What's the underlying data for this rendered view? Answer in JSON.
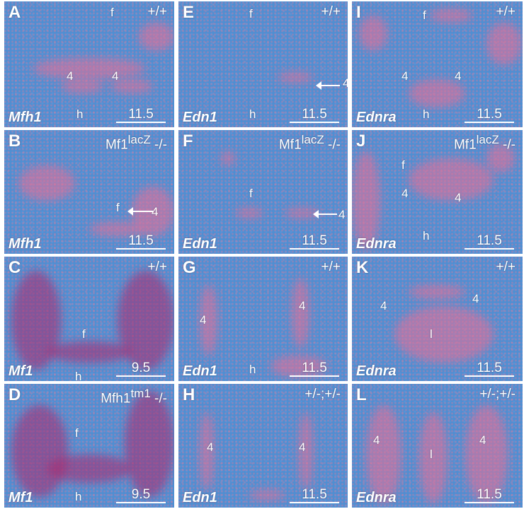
{
  "panels": [
    {
      "letter": "A",
      "genotype": "+/+",
      "gene": "Mfh1",
      "stage": "11.5",
      "labels": [
        "f",
        "4",
        "4",
        "h"
      ]
    },
    {
      "letter": "B",
      "genotype_base": "Mf1",
      "genotype_sup": "lacZ",
      "genotype_suffix": " -/-",
      "gene": "Mfh1",
      "stage": "11.5",
      "labels": [
        "f",
        "4"
      ]
    },
    {
      "letter": "C",
      "genotype": "+/+",
      "gene": "Mf1",
      "stage": "9.5",
      "labels": [
        "f",
        "h"
      ]
    },
    {
      "letter": "D",
      "genotype_base": "Mfh1",
      "genotype_sup": "tm1",
      "genotype_suffix": " -/-",
      "gene": "Mf1",
      "stage": "9.5",
      "labels": [
        "f",
        "h"
      ]
    },
    {
      "letter": "E",
      "genotype": "+/+",
      "gene": "Edn1",
      "stage": "11.5",
      "labels": [
        "f",
        "4",
        "h"
      ]
    },
    {
      "letter": "F",
      "genotype_base": "Mf1",
      "genotype_sup": "lacZ",
      "genotype_suffix": " -/-",
      "gene": "Edn1",
      "stage": "11.5",
      "labels": [
        "f",
        "4"
      ]
    },
    {
      "letter": "G",
      "genotype": "+/+",
      "gene": "Edn1",
      "stage": "11.5",
      "labels": [
        "4",
        "4",
        "h"
      ]
    },
    {
      "letter": "H",
      "genotype": "+/-;+/-",
      "gene": "Edn1",
      "stage": "11.5",
      "labels": [
        "4",
        "4"
      ]
    },
    {
      "letter": "I",
      "genotype": "+/+",
      "gene": "Ednra",
      "stage": "11.5",
      "labels": [
        "f",
        "4",
        "4",
        "h"
      ]
    },
    {
      "letter": "J",
      "genotype_base": "Mf1",
      "genotype_sup": "lacZ",
      "genotype_suffix": " -/-",
      "gene": "Ednra",
      "stage": "11.5",
      "labels": [
        "f",
        "4",
        "4",
        "h"
      ]
    },
    {
      "letter": "K",
      "genotype": "+/+",
      "gene": "Ednra",
      "stage": "11.5",
      "labels": [
        "4",
        "l",
        "4"
      ]
    },
    {
      "letter": "L",
      "genotype": "+/-;+/-",
      "gene": "Ednra",
      "stage": "11.5",
      "labels": [
        "4",
        "l",
        "4"
      ]
    }
  ]
}
